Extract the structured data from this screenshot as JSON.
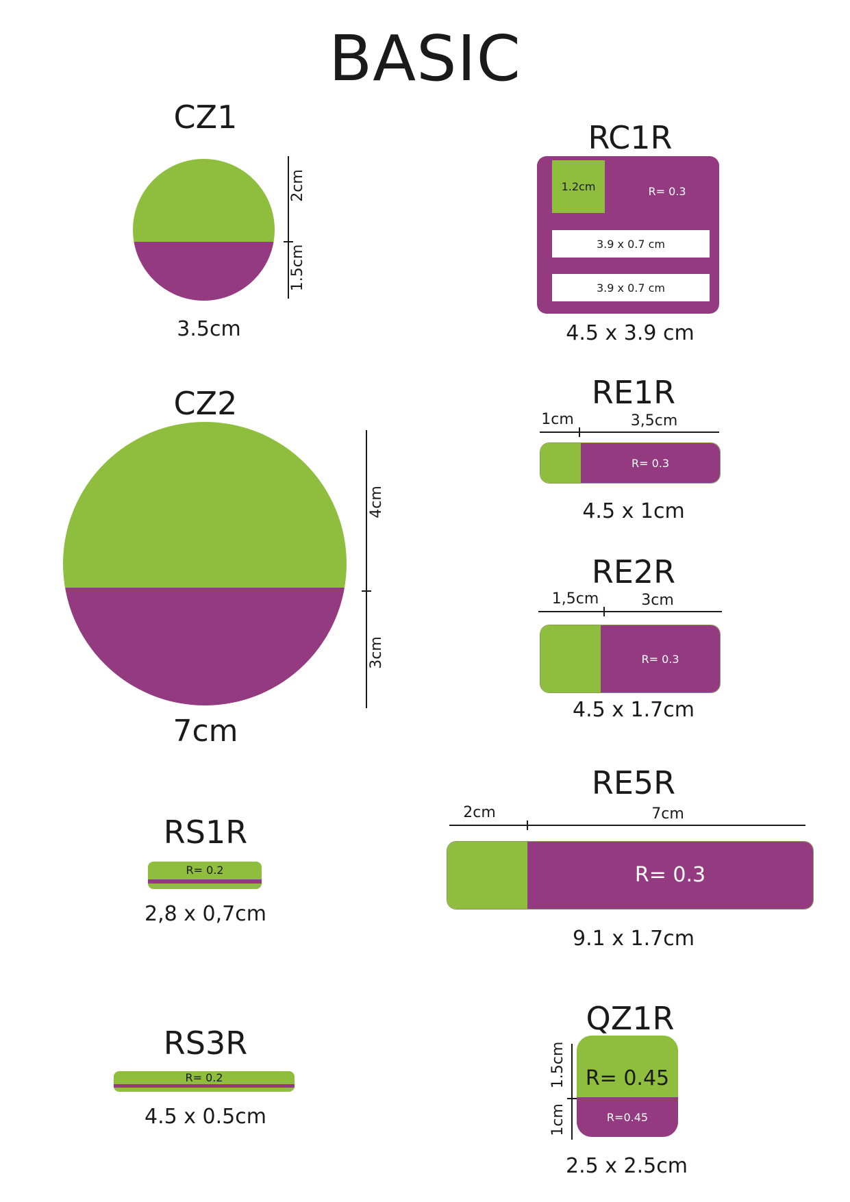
{
  "title": "BASIC",
  "colors": {
    "green": "#8fbe3f",
    "purple": "#933a80"
  },
  "shapes": {
    "cz1": {
      "name": "CZ1",
      "top_label": "2cm",
      "bottom_label": "1.5cm",
      "size": "3.5cm"
    },
    "cz2": {
      "name": "CZ2",
      "top_label": "4cm",
      "bottom_label": "3cm",
      "size": "7cm"
    },
    "rs1r": {
      "name": "RS1R",
      "radius": "R= 0.2",
      "size": "2,8 x 0,7cm"
    },
    "rs3r": {
      "name": "RS3R",
      "radius": "R= 0.2",
      "size": "4.5 x 0.5cm"
    },
    "rc1r": {
      "name": "RC1R",
      "square": "1.2cm",
      "radius": "R= 0.3",
      "bar1": "3.9 x 0.7 cm",
      "bar2": "3.9 x 0.7 cm",
      "size": "4.5 x 3.9 cm"
    },
    "re1r": {
      "name": "RE1R",
      "left": "1cm",
      "right": "3,5cm",
      "radius": "R= 0.3",
      "size": "4.5 x 1cm"
    },
    "re2r": {
      "name": "RE2R",
      "left": "1,5cm",
      "right": "3cm",
      "radius": "R= 0.3",
      "size": "4.5 x 1.7cm"
    },
    "re5r": {
      "name": "RE5R",
      "left": "2cm",
      "right": "7cm",
      "radius": "R= 0.3",
      "size": "9.1 x 1.7cm"
    },
    "qz1r": {
      "name": "QZ1R",
      "top_label": "1.5cm",
      "bottom_label": "1cm",
      "radius_top": "R= 0.45",
      "radius_bottom": "R=0.45",
      "size": "2.5 x 2.5cm"
    }
  }
}
